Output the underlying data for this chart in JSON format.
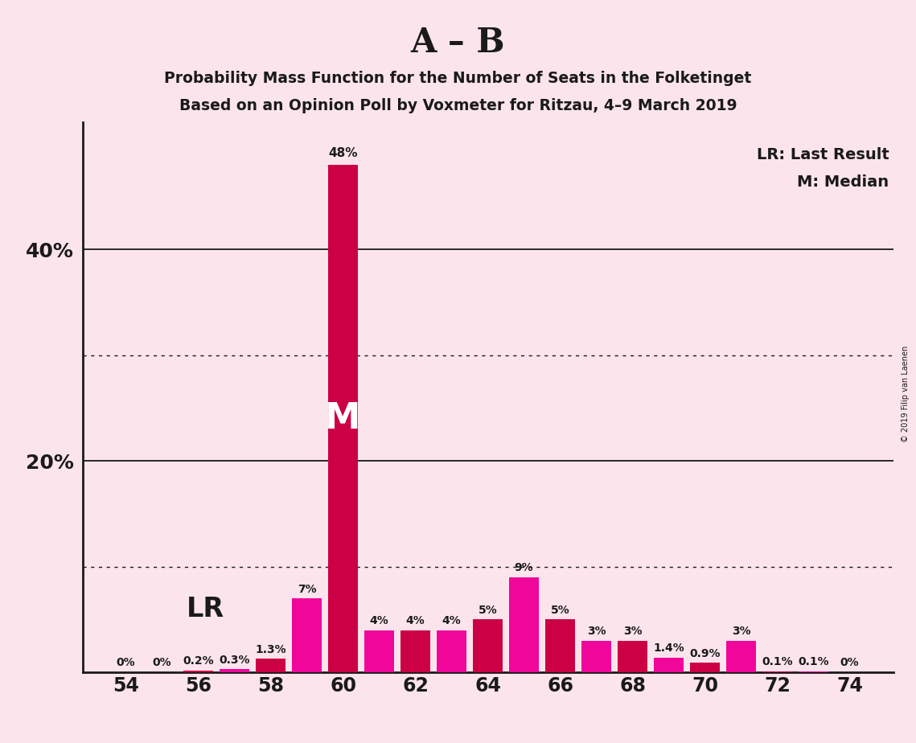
{
  "title_main": "A – B",
  "subtitle1": "Probability Mass Function for the Number of Seats in the Folketinget",
  "subtitle2": "Based on an Opinion Poll by Voxmeter for Ritzau, 4–9 March 2019",
  "copyright": "© 2019 Filip van Laenen",
  "legend_lr": "LR: Last Result",
  "legend_m": "M: Median",
  "lr_label": "LR",
  "median_label": "M",
  "background_color": "#fce4ec",
  "bar_color_pink": "#f0069a",
  "bar_color_red": "#cc0044",
  "categories": [
    54,
    55,
    56,
    57,
    58,
    59,
    60,
    61,
    62,
    63,
    64,
    65,
    66,
    67,
    68,
    69,
    70,
    71,
    72,
    73,
    74
  ],
  "values": [
    0.0,
    0.0,
    0.2,
    0.3,
    1.3,
    7.0,
    48.0,
    4.0,
    4.0,
    4.0,
    5.0,
    9.0,
    5.0,
    3.0,
    3.0,
    1.4,
    0.9,
    3.0,
    0.1,
    0.1,
    0.0
  ],
  "bar_colors": [
    "#cc0044",
    "#f0069a",
    "#cc0044",
    "#f0069a",
    "#cc0044",
    "#f0069a",
    "#cc0044",
    "#f0069a",
    "#cc0044",
    "#f0069a",
    "#cc0044",
    "#f0069a",
    "#cc0044",
    "#f0069a",
    "#cc0044",
    "#f0069a",
    "#cc0044",
    "#f0069a",
    "#cc0044",
    "#f0069a",
    "#cc0044"
  ],
  "labels": [
    "0%",
    "0%",
    "0.2%",
    "0.3%",
    "1.3%",
    "7%",
    "48%",
    "4%",
    "4%",
    "4%",
    "5%",
    "9%",
    "5%",
    "3%",
    "3%",
    "1.4%",
    "0.9%",
    "3%",
    "0.1%",
    "0.1%",
    "0%"
  ],
  "xtick_positions": [
    54,
    56,
    58,
    60,
    62,
    64,
    66,
    68,
    70,
    72,
    74
  ],
  "ylim": [
    0,
    52
  ],
  "solid_gridlines": [
    20,
    40
  ],
  "dotted_gridlines": [
    10,
    30
  ],
  "lr_seat": 59,
  "median_seat": 60,
  "axis_color": "#1a1a1a",
  "text_color": "#1a1a1a"
}
